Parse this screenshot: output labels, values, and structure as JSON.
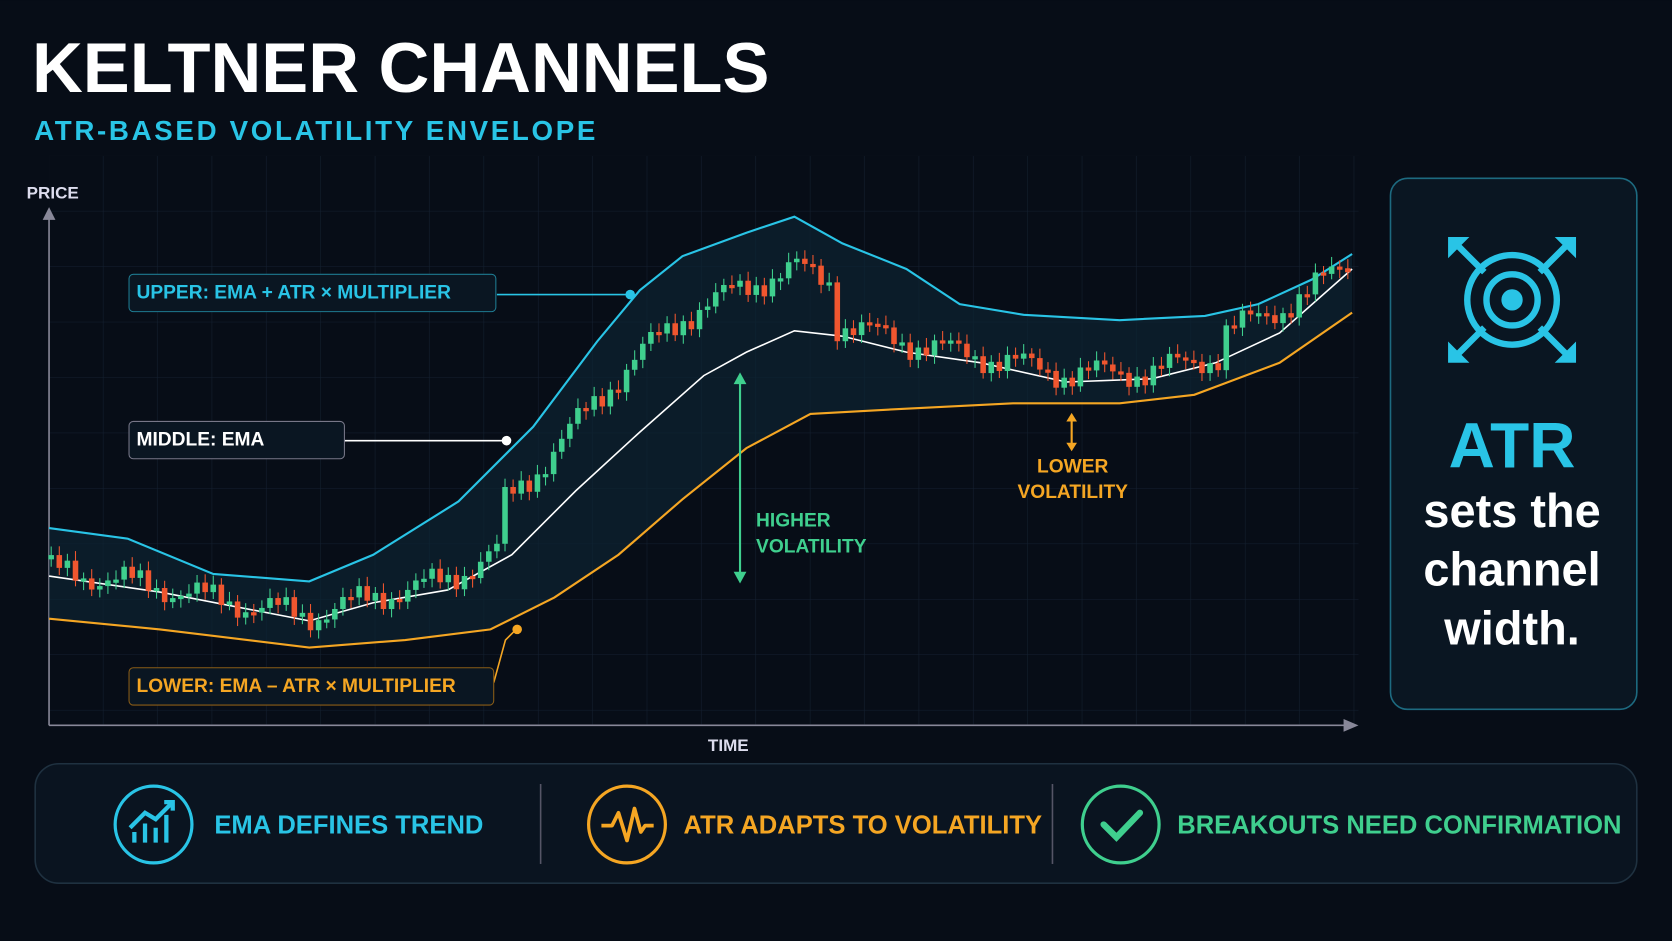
{
  "header": {
    "title": "KELTNER CHANNELS",
    "subtitle": "ATR-BASED VOLATILITY ENVELOPE"
  },
  "chart": {
    "y_axis_label": "PRICE",
    "x_axis_label": "TIME",
    "labels": {
      "upper": "UPPER: EMA + ATR × MULTIPLIER",
      "middle": "MIDDLE: EMA",
      "lower": "LOWER: EMA – ATR × MULTIPLIER"
    },
    "annotations": {
      "higher": [
        "HIGHER",
        "VOLATILITY"
      ],
      "lower": [
        "LOWER",
        "VOLATILITY"
      ]
    }
  },
  "side_panel": {
    "heading": "ATR",
    "body": [
      "sets the",
      "channel",
      "width."
    ]
  },
  "footer": {
    "items": [
      "EMA DEFINES TREND",
      "ATR ADAPTS TO VOLATILITY",
      "BREAKOUTS NEED CONFIRMATION"
    ]
  }
}
